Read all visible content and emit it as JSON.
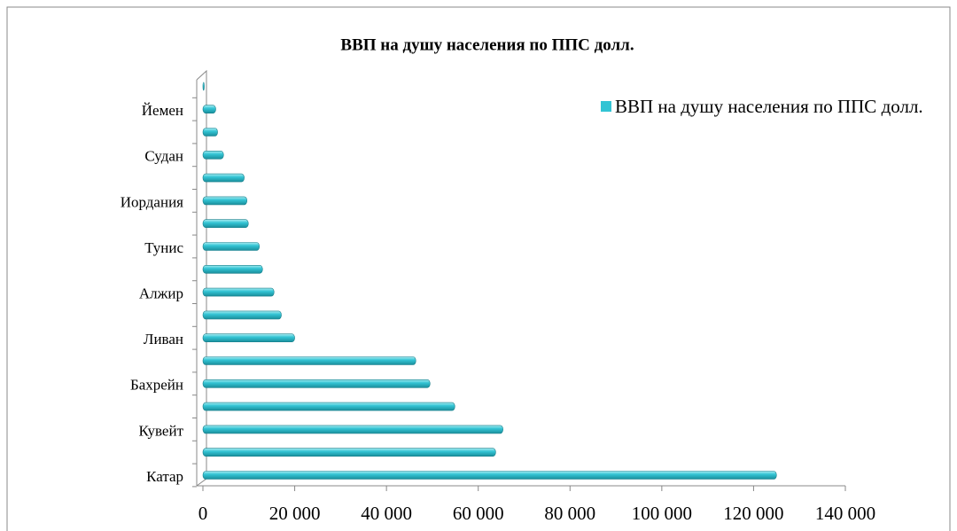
{
  "chart_data": {
    "type": "bar",
    "orientation": "horizontal",
    "title": "ВВП на душу населения по ППС долл.",
    "categories": [
      "Катар",
      null,
      "Кувейт",
      null,
      "Бахрейн",
      null,
      "Ливан",
      null,
      "Алжир",
      null,
      "Тунис",
      null,
      "Иордания",
      null,
      "Судан",
      null,
      "Йемен",
      null
    ],
    "series": [
      {
        "name": "ВВП на душу населения по ППС долл.",
        "color": "#33c4d4",
        "values": [
          124900,
          63700,
          65300,
          54800,
          49400,
          46300,
          19900,
          17000,
          15400,
          12900,
          12200,
          9800,
          9500,
          8900,
          4400,
          3100,
          2700,
          200
        ]
      }
    ],
    "xlim": [
      0,
      140000
    ],
    "xticks": [
      0,
      {
        "value": 20000,
        "label": "20 000"
      },
      {
        "value": 40000,
        "label": "40 000"
      },
      {
        "value": 60000,
        "label": "60 000"
      },
      {
        "value": 80000,
        "label": "80 000"
      },
      {
        "value": 100000,
        "label": "100 000"
      },
      {
        "value": 120000,
        "label": "120 000"
      },
      {
        "value": 140000,
        "label": "140 000"
      }
    ],
    "legend": "right"
  }
}
